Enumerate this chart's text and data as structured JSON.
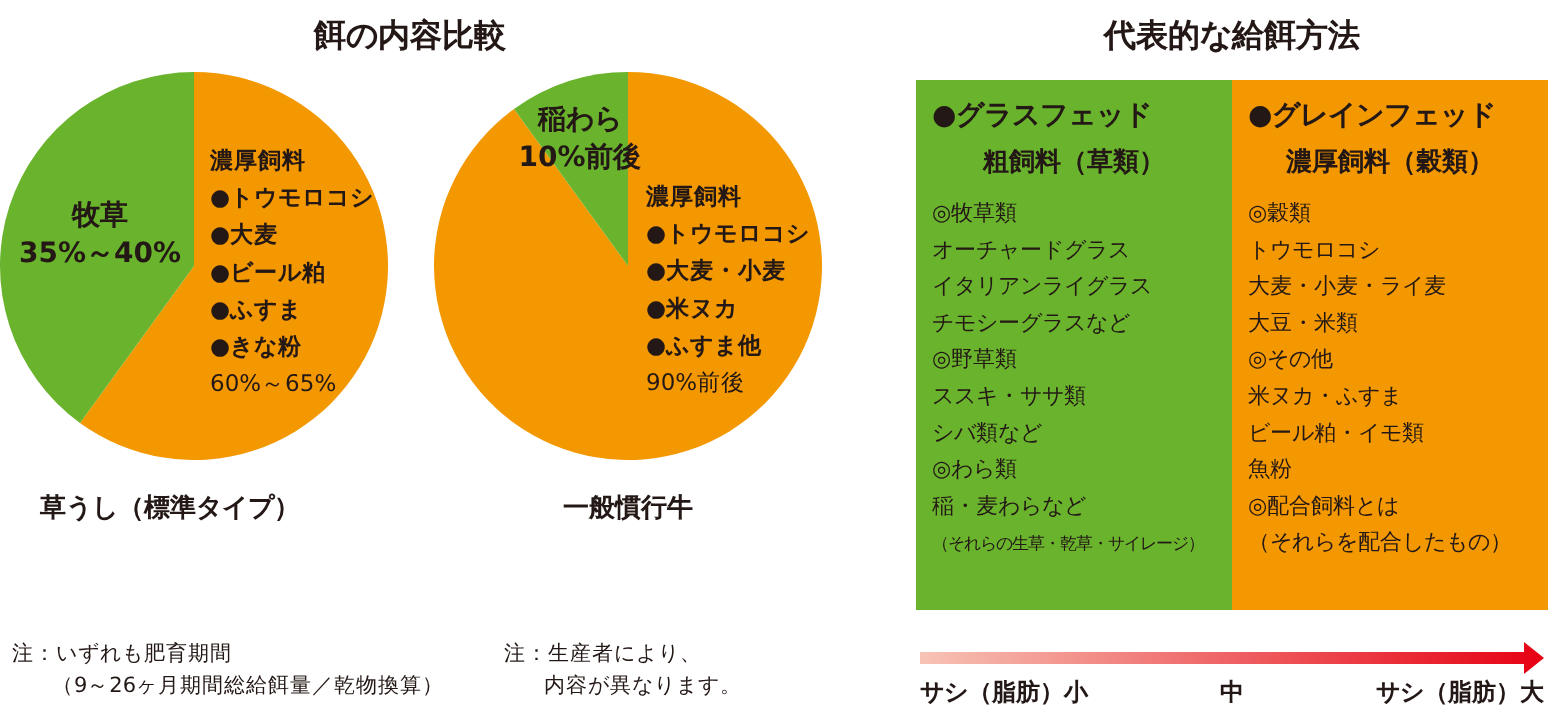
{
  "chart_data": [
    {
      "type": "pie",
      "title": "餌の内容比較",
      "subtitle": "草うし（標準タイプ）",
      "categories": [
        "濃厚飼料",
        "牧草"
      ],
      "values": [
        60,
        40
      ],
      "value_labels": [
        "60%～65%",
        "35%～40%"
      ],
      "colors": [
        "#f39800",
        "#6ab42d"
      ],
      "annotations": [
        {
          "text": "●トウモロコシ",
          "x": "濃厚飼料"
        },
        {
          "text": "●大麦",
          "x": "濃厚飼料"
        },
        {
          "text": "●ビール粕",
          "x": "濃厚飼料"
        },
        {
          "text": "●ふすま",
          "x": "濃厚飼料"
        },
        {
          "text": "●きな粉",
          "x": "濃厚飼料"
        },
        "注：いずれも肥育期間",
        "（9～26ヶ月期間総給餌量／乾物換算）"
      ]
    },
    {
      "type": "pie",
      "subtitle": "一般慣行牛",
      "categories": [
        "濃厚飼料",
        "稲わら"
      ],
      "values": [
        90,
        10
      ],
      "value_labels": [
        "90%前後",
        "10%前後"
      ],
      "colors": [
        "#f39800",
        "#6ab42d"
      ],
      "annotations": [
        {
          "text": "●トウモロコシ",
          "x": "濃厚飼料"
        },
        {
          "text": "●大麦・小麦",
          "x": "濃厚飼料"
        },
        {
          "text": "●米ヌカ",
          "x": "濃厚飼料"
        },
        {
          "text": "●ふすま他",
          "x": "濃厚飼料"
        },
        "注：生産者により、",
        "内容が異なります。"
      ]
    },
    {
      "type": "other",
      "title": "代表的な給餌方法",
      "categories": [
        "●グラスフェッド",
        "●グレインフェッド"
      ],
      "colors": [
        "#6ab42d",
        "#f39800"
      ],
      "annotations": [
        {
          "text": "粗飼料（草類）",
          "x": "●グラスフェッド"
        },
        {
          "text": "◎牧草類",
          "x": "●グラスフェッド"
        },
        {
          "text": "オーチャードグラス",
          "x": "●グラスフェッド"
        },
        {
          "text": "イタリアンライグラス",
          "x": "●グラスフェッド"
        },
        {
          "text": "チモシーグラスなど",
          "x": "●グラスフェッド"
        },
        {
          "text": "◎野草類",
          "x": "●グラスフェッド"
        },
        {
          "text": "ススキ・ササ類",
          "x": "●グラスフェッド"
        },
        {
          "text": "シバ類など",
          "x": "●グラスフェッド"
        },
        {
          "text": "◎わら類",
          "x": "●グラスフェッド"
        },
        {
          "text": "稲・麦わらなど",
          "x": "●グラスフェッド"
        },
        {
          "text": "（それらの生草・乾草・サイレージ）",
          "x": "●グラスフェッド"
        },
        {
          "text": "濃厚飼料（穀類）",
          "x": "●グレインフェッド"
        },
        {
          "text": "◎穀類",
          "x": "●グレインフェッド"
        },
        {
          "text": "トウモロコシ",
          "x": "●グレインフェッド"
        },
        {
          "text": "大麦・小麦・ライ麦",
          "x": "●グレインフェッド"
        },
        {
          "text": "大豆・米類",
          "x": "●グレインフェッド"
        },
        {
          "text": "◎その他",
          "x": "●グレインフェッド"
        },
        {
          "text": "米ヌカ・ふすま",
          "x": "●グレインフェッド"
        },
        {
          "text": "ビール粕・イモ類",
          "x": "●グレインフェッド"
        },
        {
          "text": "魚粉",
          "x": "●グレインフェッド"
        },
        {
          "text": "◎配合飼料とは",
          "x": "●グレインフェッド"
        },
        {
          "text": "（それらを配合したもの）",
          "x": "●グレインフェッド"
        },
        "サシ（脂肪）小",
        "中",
        "サシ（脂肪）大"
      ]
    }
  ]
}
